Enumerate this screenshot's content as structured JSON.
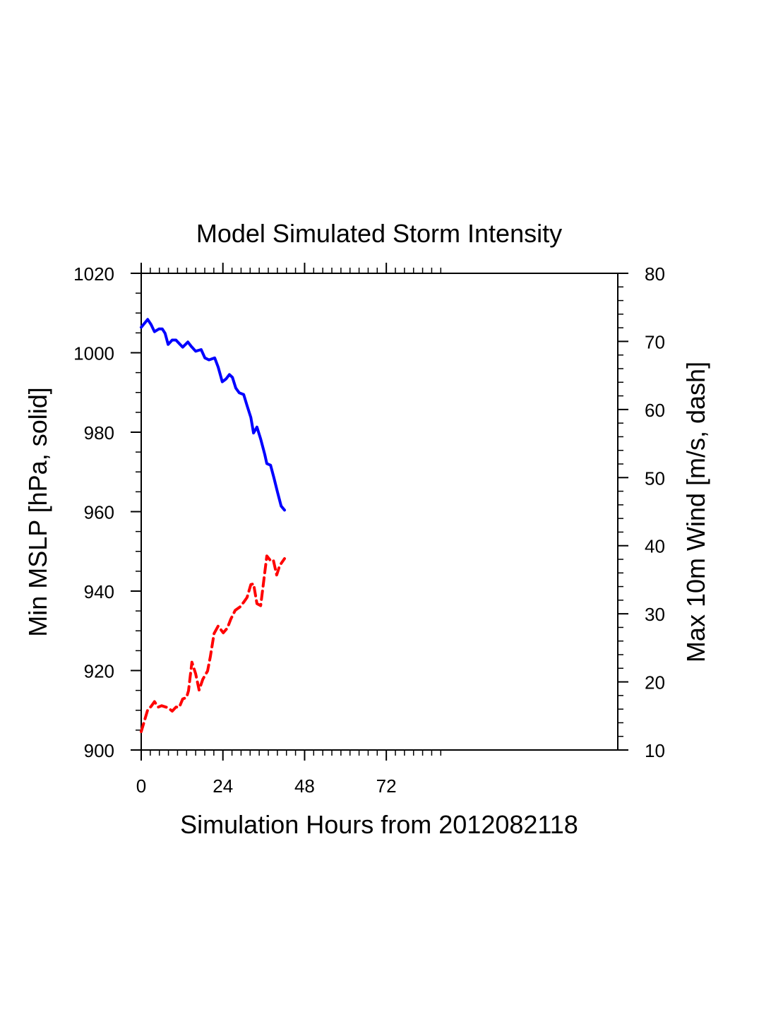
{
  "chart_data": {
    "type": "line",
    "title": "Model Simulated Storm Intensity",
    "xlabel": "Simulation Hours from 2012082118",
    "ylabel_left": "Min MSLP  [hPa, solid]",
    "ylabel_right": "Max 10m Wind  [m/s, dash]",
    "xlim": [
      0,
      140
    ],
    "ylim_left": [
      900,
      1020
    ],
    "ylim_right": [
      10,
      80
    ],
    "x_ticks": [
      0,
      24,
      48,
      72
    ],
    "x_tick_labels": [
      "0",
      "24",
      "48",
      "72"
    ],
    "x_minor_tick_extent": 90,
    "y_left_ticks": [
      900,
      920,
      940,
      960,
      980,
      1000,
      1020
    ],
    "y_left_tick_labels": [
      "900",
      "920",
      "940",
      "960",
      "980",
      "1000",
      "1020"
    ],
    "y_left_minor_step": 5,
    "y_right_ticks": [
      10,
      20,
      30,
      40,
      50,
      60,
      70,
      80
    ],
    "y_right_tick_labels": [
      "10",
      "20",
      "30",
      "40",
      "50",
      "60",
      "70",
      "80"
    ],
    "y_right_minor_step": 2,
    "grid": false,
    "legend": "none",
    "series": [
      {
        "name": "Min MSLP",
        "axis": "left",
        "style": "solid",
        "color": "#0000ff",
        "x": [
          0,
          1.9,
          2.9,
          3.9,
          5.2,
          6.2,
          7.0,
          7.9,
          9.1,
          10.2,
          11.2,
          12.2,
          13.7,
          14.7,
          16.0,
          17.6,
          18.7,
          19.9,
          21.6,
          22.6,
          23.8,
          24.9,
          25.9,
          26.8,
          27.8,
          28.8,
          30.1,
          31.1,
          32.2,
          33.0,
          34.0,
          35.1,
          36.3,
          36.9,
          38.0,
          39.0,
          40.0,
          41.1,
          42.1
        ],
        "values": [
          1006.4,
          1008.4,
          1007.1,
          1005.3,
          1006.0,
          1006.0,
          1004.9,
          1002.1,
          1003.2,
          1003.2,
          1002.3,
          1001.4,
          1002.7,
          1001.6,
          1000.4,
          1000.8,
          998.7,
          998.2,
          998.7,
          996.4,
          992.7,
          993.4,
          994.5,
          993.8,
          991.1,
          989.9,
          989.5,
          986.7,
          983.7,
          979.8,
          981.3,
          978.3,
          974.4,
          972.1,
          971.7,
          968.5,
          965.0,
          961.4,
          960.4
        ]
      },
      {
        "name": "Max 10m Wind",
        "axis": "right",
        "style": "dash",
        "color": "#ff0000",
        "x": [
          0,
          1.9,
          2.9,
          3.9,
          5.0,
          6.0,
          7.9,
          9.1,
          10.2,
          11.2,
          12.2,
          13.3,
          13.9,
          14.9,
          16.0,
          17.0,
          18.1,
          19.5,
          20.3,
          21.4,
          22.6,
          24.1,
          25.3,
          26.3,
          27.6,
          29.0,
          30.1,
          31.1,
          32.2,
          33.0,
          34.0,
          35.1,
          36.1,
          36.9,
          38.0,
          38.8,
          39.8,
          40.7,
          42.1
        ],
        "values": [
          12.7,
          15.9,
          16.4,
          17.1,
          16.3,
          16.5,
          16.2,
          15.7,
          16.3,
          16.3,
          17.5,
          17.7,
          18.7,
          22.9,
          21.2,
          18.8,
          20.4,
          21.6,
          23.7,
          27.1,
          28.2,
          27.2,
          27.9,
          29.2,
          30.5,
          31.0,
          31.7,
          32.4,
          34.3,
          34.4,
          31.5,
          31.2,
          35.3,
          38.5,
          37.8,
          37.9,
          35.7,
          37.1,
          38.1
        ]
      }
    ]
  }
}
